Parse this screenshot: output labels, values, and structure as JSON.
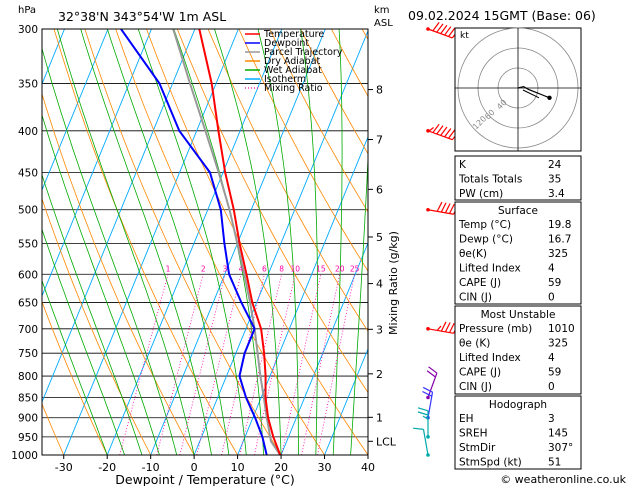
{
  "header": {
    "location": "32°38'N  343°54'W  1m  ASL",
    "datetime": "09.02.2024  15GMT  (Base: 06)",
    "pressure_unit": "hPa",
    "km_unit": "km",
    "asl": "ASL"
  },
  "legend": [
    {
      "label": "Temperature",
      "color": "#ff0000"
    },
    {
      "label": "Dewpoint",
      "color": "#0000ff"
    },
    {
      "label": "Parcel Trajectory",
      "color": "#999999"
    },
    {
      "label": "Dry Adiabat",
      "color": "#ff8800"
    },
    {
      "label": "Wet Adiabat",
      "color": "#00aa00"
    },
    {
      "label": "Isotherm",
      "color": "#00aaff"
    },
    {
      "label": "Mixing Ratio",
      "color": "#ff00aa"
    }
  ],
  "hodograph": {
    "unit_label": "kt",
    "ring_labels": [
      "40",
      "60",
      "120"
    ]
  },
  "indices": [
    {
      "label": "K",
      "value": "24"
    },
    {
      "label": "Totals Totals",
      "value": "35"
    },
    {
      "label": "PW (cm)",
      "value": "3.4"
    }
  ],
  "surface": {
    "title": "Surface",
    "rows": [
      {
        "label": "Temp (°C)",
        "value": "19.8"
      },
      {
        "label": "Dewp (°C)",
        "value": "16.7"
      },
      {
        "label": "θe(K)",
        "value": "325"
      },
      {
        "label": "Lifted Index",
        "value": "4"
      },
      {
        "label": "CAPE (J)",
        "value": "59"
      },
      {
        "label": "CIN (J)",
        "value": "0"
      }
    ]
  },
  "most_unstable": {
    "title": "Most Unstable",
    "rows": [
      {
        "label": "Pressure (mb)",
        "value": "1010"
      },
      {
        "label": "θe (K)",
        "value": "325"
      },
      {
        "label": "Lifted Index",
        "value": "4"
      },
      {
        "label": "CAPE (J)",
        "value": "59"
      },
      {
        "label": "CIN (J)",
        "value": "0"
      }
    ]
  },
  "hodograph_table": {
    "title": "Hodograph",
    "rows": [
      {
        "label": "EH",
        "value": "3"
      },
      {
        "label": "SREH",
        "value": "145"
      },
      {
        "label": "StmDir",
        "value": "307°"
      },
      {
        "label": "StmSpd (kt)",
        "value": "51"
      }
    ]
  },
  "copyright": "© weatheronline.co.uk",
  "chart_data": {
    "type": "line",
    "xlabel": "Dewpoint / Temperature (°C)",
    "ylabel": "hPa",
    "right_axis_label": "Mixing Ratio (g/kg)",
    "xlim": [
      -35,
      40
    ],
    "x_ticks": [
      -30,
      -20,
      -10,
      0,
      10,
      20,
      30,
      40
    ],
    "pressure_levels": [
      300,
      350,
      400,
      450,
      500,
      550,
      600,
      650,
      700,
      750,
      800,
      850,
      900,
      950,
      1000
    ],
    "km_ticks": [
      {
        "label": "8",
        "p": 356
      },
      {
        "label": "7",
        "p": 410
      },
      {
        "label": "6",
        "p": 472
      },
      {
        "label": "5",
        "p": 540
      },
      {
        "label": "4",
        "p": 616
      },
      {
        "label": "3",
        "p": 701
      },
      {
        "label": "2",
        "p": 795
      },
      {
        "label": "1",
        "p": 899
      },
      {
        "label": "LCL",
        "p": 962
      }
    ],
    "mixing_ratio_labels": [
      "1",
      "2",
      "3",
      "4",
      "6",
      "8",
      "10",
      "15",
      "20",
      "25"
    ],
    "mixing_ratio_values": [
      1,
      2,
      3,
      4,
      6,
      8,
      10,
      15,
      20,
      25
    ],
    "temperature": [
      {
        "p": 1000,
        "t": 19.8
      },
      {
        "p": 950,
        "t": 16.5
      },
      {
        "p": 900,
        "t": 13.5
      },
      {
        "p": 850,
        "t": 11
      },
      {
        "p": 800,
        "t": 9
      },
      {
        "p": 750,
        "t": 6.5
      },
      {
        "p": 700,
        "t": 3.5
      },
      {
        "p": 650,
        "t": -1
      },
      {
        "p": 600,
        "t": -5
      },
      {
        "p": 550,
        "t": -9.5
      },
      {
        "p": 500,
        "t": -14
      },
      {
        "p": 450,
        "t": -19.5
      },
      {
        "p": 400,
        "t": -25
      },
      {
        "p": 350,
        "t": -31
      },
      {
        "p": 300,
        "t": -39
      }
    ],
    "dewpoint": [
      {
        "p": 1000,
        "t": 16.7
      },
      {
        "p": 950,
        "t": 14
      },
      {
        "p": 900,
        "t": 10.5
      },
      {
        "p": 850,
        "t": 6.5
      },
      {
        "p": 800,
        "t": 3
      },
      {
        "p": 750,
        "t": 2
      },
      {
        "p": 700,
        "t": 2
      },
      {
        "p": 650,
        "t": -3.5
      },
      {
        "p": 600,
        "t": -9
      },
      {
        "p": 550,
        "t": -13
      },
      {
        "p": 500,
        "t": -17
      },
      {
        "p": 450,
        "t": -23
      },
      {
        "p": 400,
        "t": -34
      },
      {
        "p": 350,
        "t": -43
      },
      {
        "p": 300,
        "t": -57
      }
    ],
    "parcel": [
      {
        "p": 1000,
        "t": 19.8
      },
      {
        "p": 962,
        "t": 16.4
      },
      {
        "p": 900,
        "t": 13.2
      },
      {
        "p": 850,
        "t": 10.6
      },
      {
        "p": 800,
        "t": 7.8
      },
      {
        "p": 750,
        "t": 5
      },
      {
        "p": 700,
        "t": 2
      },
      {
        "p": 650,
        "t": -1.5
      },
      {
        "p": 600,
        "t": -5.5
      },
      {
        "p": 550,
        "t": -10
      },
      {
        "p": 500,
        "t": -15
      },
      {
        "p": 450,
        "t": -21
      },
      {
        "p": 400,
        "t": -28
      },
      {
        "p": 350,
        "t": -36
      },
      {
        "p": 300,
        "t": -45
      }
    ],
    "wind_barbs": [
      {
        "p": 300,
        "dir": 290,
        "spd": 60
      },
      {
        "p": 400,
        "dir": 290,
        "spd": 55
      },
      {
        "p": 500,
        "dir": 280,
        "spd": 50
      },
      {
        "p": 700,
        "dir": 280,
        "spd": 35
      },
      {
        "p": 850,
        "dir": 200,
        "spd": 20
      },
      {
        "p": 900,
        "dir": 190,
        "spd": 20
      },
      {
        "p": 950,
        "dir": 180,
        "spd": 15
      },
      {
        "p": 1000,
        "dir": 170,
        "spd": 10
      }
    ],
    "hodograph_trace": [
      {
        "u": 0,
        "v": 0
      },
      {
        "u": 8,
        "v": 2
      },
      {
        "u": 15,
        "v": -2
      },
      {
        "u": 25,
        "v": -6
      },
      {
        "u": 35,
        "v": -10
      },
      {
        "u": 45,
        "v": -14
      }
    ],
    "hodograph_storm": {
      "u": 30,
      "v": -14
    }
  }
}
